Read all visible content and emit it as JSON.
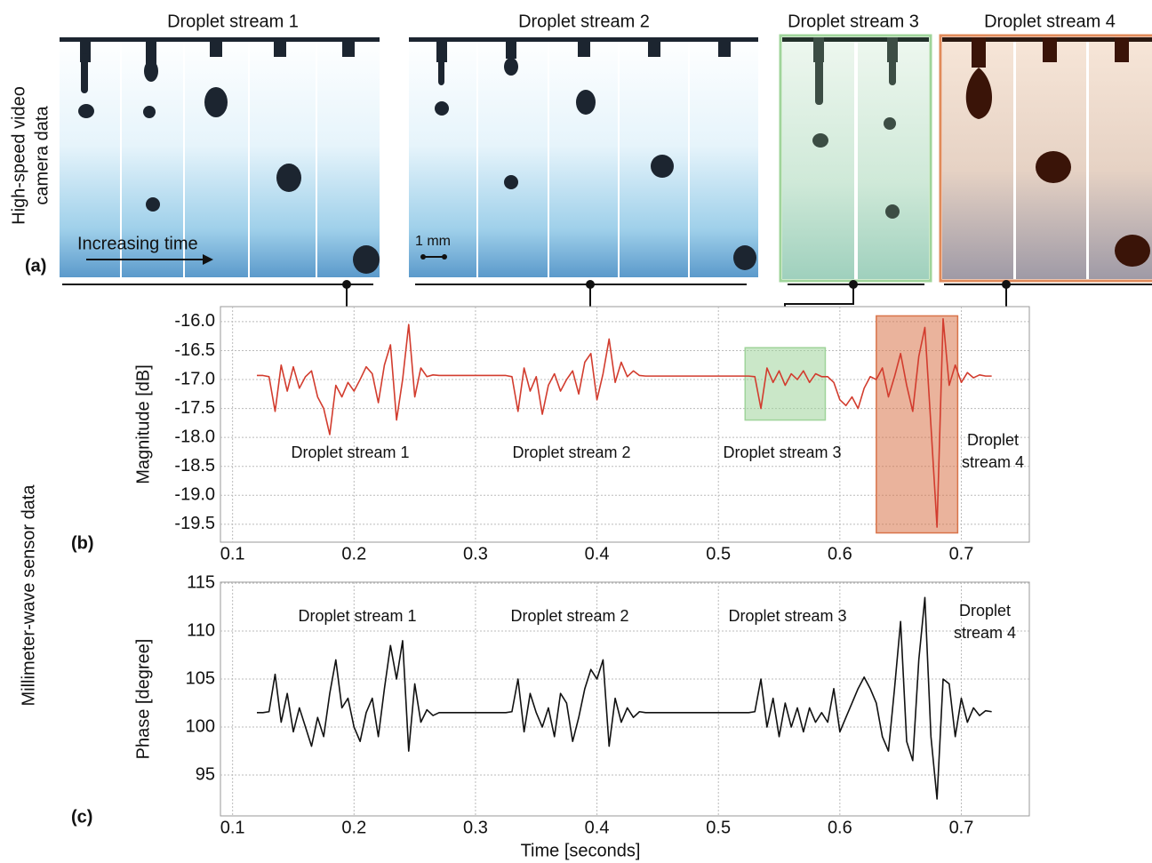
{
  "panel_a": {
    "label": "(a)",
    "ylabel": [
      "High-speed video",
      "camera data"
    ],
    "streams": [
      "Droplet stream 1",
      "Droplet stream 2",
      "Droplet stream 3",
      "Droplet stream 4"
    ],
    "time_label": "Increasing time",
    "scale_label": "1 mm"
  },
  "sensor_label": "Millimeter-wave sensor data",
  "chart_data": [
    {
      "type": "line",
      "panel_label": "(b)",
      "ylabel": "Magnitude [dB]",
      "color": "#d23c2e",
      "grid": true,
      "xlim": [
        0.09,
        0.756
      ],
      "xticks": [
        0.1,
        0.2,
        0.3,
        0.4,
        0.5,
        0.6,
        0.7
      ],
      "ylim": [
        -19.81,
        -15.74
      ],
      "yticks": [
        {
          "value": -16,
          "label": "-16.0"
        },
        -16.5,
        {
          "value": -17,
          "label": "-17.0"
        },
        -17.5,
        {
          "value": -18,
          "label": "-18.0"
        },
        -18.5,
        {
          "value": -19,
          "label": "-19.0"
        },
        -19.5
      ],
      "highlights": [
        {
          "x": [
            0.522,
            0.588
          ],
          "y": [
            -17.7,
            -16.45
          ],
          "color": "#9fd49a"
        },
        {
          "x": [
            0.63,
            0.697
          ],
          "y": [
            -19.65,
            -15.9
          ],
          "color": "#d9744a"
        }
      ],
      "annotations": [
        [
          "Droplet stream 1"
        ],
        [
          "Droplet stream 2"
        ],
        [
          "Droplet stream 3"
        ],
        [
          "Droplet",
          "stream 4"
        ]
      ],
      "x": [
        0.12,
        0.125,
        0.13,
        0.135,
        0.14,
        0.145,
        0.15,
        0.155,
        0.16,
        0.165,
        0.17,
        0.175,
        0.18,
        0.185,
        0.19,
        0.195,
        0.2,
        0.205,
        0.21,
        0.215,
        0.22,
        0.225,
        0.23,
        0.235,
        0.24,
        0.245,
        0.25,
        0.255,
        0.26,
        0.265,
        0.27,
        0.275,
        0.28,
        0.285,
        0.29,
        0.295,
        0.3,
        0.305,
        0.31,
        0.315,
        0.32,
        0.325,
        0.33,
        0.335,
        0.34,
        0.345,
        0.35,
        0.355,
        0.36,
        0.365,
        0.37,
        0.375,
        0.38,
        0.385,
        0.39,
        0.395,
        0.4,
        0.405,
        0.41,
        0.415,
        0.42,
        0.425,
        0.43,
        0.435,
        0.44,
        0.445,
        0.45,
        0.455,
        0.46,
        0.465,
        0.47,
        0.475,
        0.48,
        0.485,
        0.49,
        0.495,
        0.5,
        0.505,
        0.51,
        0.515,
        0.52,
        0.525,
        0.53,
        0.535,
        0.54,
        0.545,
        0.55,
        0.555,
        0.56,
        0.565,
        0.57,
        0.575,
        0.58,
        0.585,
        0.59,
        0.595,
        0.6,
        0.605,
        0.61,
        0.615,
        0.62,
        0.625,
        0.63,
        0.635,
        0.64,
        0.645,
        0.65,
        0.655,
        0.66,
        0.665,
        0.67,
        0.675,
        0.68,
        0.685,
        0.69,
        0.695,
        0.7,
        0.705,
        0.71,
        0.715,
        0.72,
        0.725
      ],
      "values": [
        -16.93,
        -16.93,
        -16.95,
        -17.55,
        -16.75,
        -17.2,
        -16.78,
        -17.15,
        -16.95,
        -16.85,
        -17.3,
        -17.5,
        -17.95,
        -17.1,
        -17.3,
        -17.05,
        -17.2,
        -17.0,
        -16.78,
        -16.9,
        -17.4,
        -16.75,
        -16.4,
        -17.7,
        -17.0,
        -16.05,
        -17.3,
        -16.8,
        -16.95,
        -16.92,
        -16.93,
        -16.93,
        -16.93,
        -16.93,
        -16.93,
        -16.93,
        -16.93,
        -16.93,
        -16.93,
        -16.93,
        -16.93,
        -16.93,
        -16.95,
        -17.55,
        -16.8,
        -17.2,
        -16.95,
        -17.6,
        -17.1,
        -16.9,
        -17.2,
        -17.0,
        -16.85,
        -17.25,
        -16.7,
        -16.55,
        -17.35,
        -16.9,
        -16.3,
        -17.05,
        -16.7,
        -16.95,
        -16.85,
        -16.93,
        -16.94,
        -16.94,
        -16.94,
        -16.94,
        -16.94,
        -16.94,
        -16.94,
        -16.94,
        -16.94,
        -16.94,
        -16.94,
        -16.94,
        -16.94,
        -16.94,
        -16.94,
        -16.94,
        -16.94,
        -16.94,
        -16.95,
        -17.5,
        -16.8,
        -17.05,
        -16.85,
        -17.1,
        -16.9,
        -17.0,
        -16.85,
        -17.05,
        -16.9,
        -16.95,
        -16.95,
        -17.05,
        -17.35,
        -17.45,
        -17.3,
        -17.5,
        -17.15,
        -16.95,
        -17.0,
        -16.8,
        -17.3,
        -16.95,
        -16.55,
        -17.1,
        -17.55,
        -16.6,
        -16.1,
        -17.8,
        -19.55,
        -15.95,
        -17.1,
        -16.75,
        -17.05,
        -16.88,
        -16.97,
        -16.92,
        -16.94,
        -16.94
      ]
    },
    {
      "type": "line",
      "panel_label": "(c)",
      "ylabel": "Phase [degree]",
      "xlabel": "Time [seconds]",
      "color": "#111111",
      "grid": true,
      "xlim": [
        0.09,
        0.756
      ],
      "xticks": [
        0.1,
        0.2,
        0.3,
        0.4,
        0.5,
        0.6,
        0.7
      ],
      "ylim": [
        90.74,
        115.1
      ],
      "yticks": [
        95,
        100,
        105,
        110,
        115
      ],
      "annotations": [
        [
          "Droplet stream 1"
        ],
        [
          "Droplet stream 2"
        ],
        [
          "Droplet stream 3"
        ],
        [
          "Droplet",
          "stream 4"
        ]
      ],
      "x": [
        0.12,
        0.125,
        0.13,
        0.135,
        0.14,
        0.145,
        0.15,
        0.155,
        0.16,
        0.165,
        0.17,
        0.175,
        0.18,
        0.185,
        0.19,
        0.195,
        0.2,
        0.205,
        0.21,
        0.215,
        0.22,
        0.225,
        0.23,
        0.235,
        0.24,
        0.245,
        0.25,
        0.255,
        0.26,
        0.265,
        0.27,
        0.275,
        0.28,
        0.285,
        0.29,
        0.295,
        0.3,
        0.305,
        0.31,
        0.315,
        0.32,
        0.325,
        0.33,
        0.335,
        0.34,
        0.345,
        0.35,
        0.355,
        0.36,
        0.365,
        0.37,
        0.375,
        0.38,
        0.385,
        0.39,
        0.395,
        0.4,
        0.405,
        0.41,
        0.415,
        0.42,
        0.425,
        0.43,
        0.435,
        0.44,
        0.445,
        0.45,
        0.455,
        0.46,
        0.465,
        0.47,
        0.475,
        0.48,
        0.485,
        0.49,
        0.495,
        0.5,
        0.505,
        0.51,
        0.515,
        0.52,
        0.525,
        0.53,
        0.535,
        0.54,
        0.545,
        0.55,
        0.555,
        0.56,
        0.565,
        0.57,
        0.575,
        0.58,
        0.585,
        0.59,
        0.595,
        0.6,
        0.605,
        0.61,
        0.615,
        0.62,
        0.625,
        0.63,
        0.635,
        0.64,
        0.645,
        0.65,
        0.655,
        0.66,
        0.665,
        0.67,
        0.675,
        0.68,
        0.685,
        0.69,
        0.695,
        0.7,
        0.705,
        0.71,
        0.715,
        0.72,
        0.725
      ],
      "values": [
        101.5,
        101.5,
        101.6,
        105.5,
        100.5,
        103.5,
        99.5,
        102,
        100,
        98,
        101,
        99,
        103.5,
        107,
        102,
        103,
        100,
        98.5,
        101.5,
        103,
        99,
        104,
        108.5,
        105,
        109,
        97.5,
        104.5,
        100.5,
        101.8,
        101.2,
        101.5,
        101.5,
        101.5,
        101.5,
        101.5,
        101.5,
        101.5,
        101.5,
        101.5,
        101.5,
        101.5,
        101.5,
        101.6,
        105,
        99.5,
        103.5,
        101.5,
        100,
        102,
        99,
        103.5,
        102.5,
        98.5,
        101,
        104,
        106,
        105,
        107,
        98,
        103,
        100.5,
        102,
        101,
        101.6,
        101.5,
        101.5,
        101.5,
        101.5,
        101.5,
        101.5,
        101.5,
        101.5,
        101.5,
        101.5,
        101.5,
        101.5,
        101.5,
        101.5,
        101.5,
        101.5,
        101.5,
        101.5,
        101.6,
        105,
        100,
        103,
        99,
        102.5,
        100,
        102,
        99.5,
        102,
        100.5,
        101.5,
        100.5,
        104,
        99.5,
        101,
        102.5,
        104,
        105.2,
        104,
        102.5,
        99,
        97.5,
        104,
        111,
        98.5,
        96.5,
        107,
        113.5,
        99,
        92.5,
        105,
        104.5,
        99,
        103,
        100.5,
        102,
        101.2,
        101.7,
        101.6
      ]
    }
  ]
}
